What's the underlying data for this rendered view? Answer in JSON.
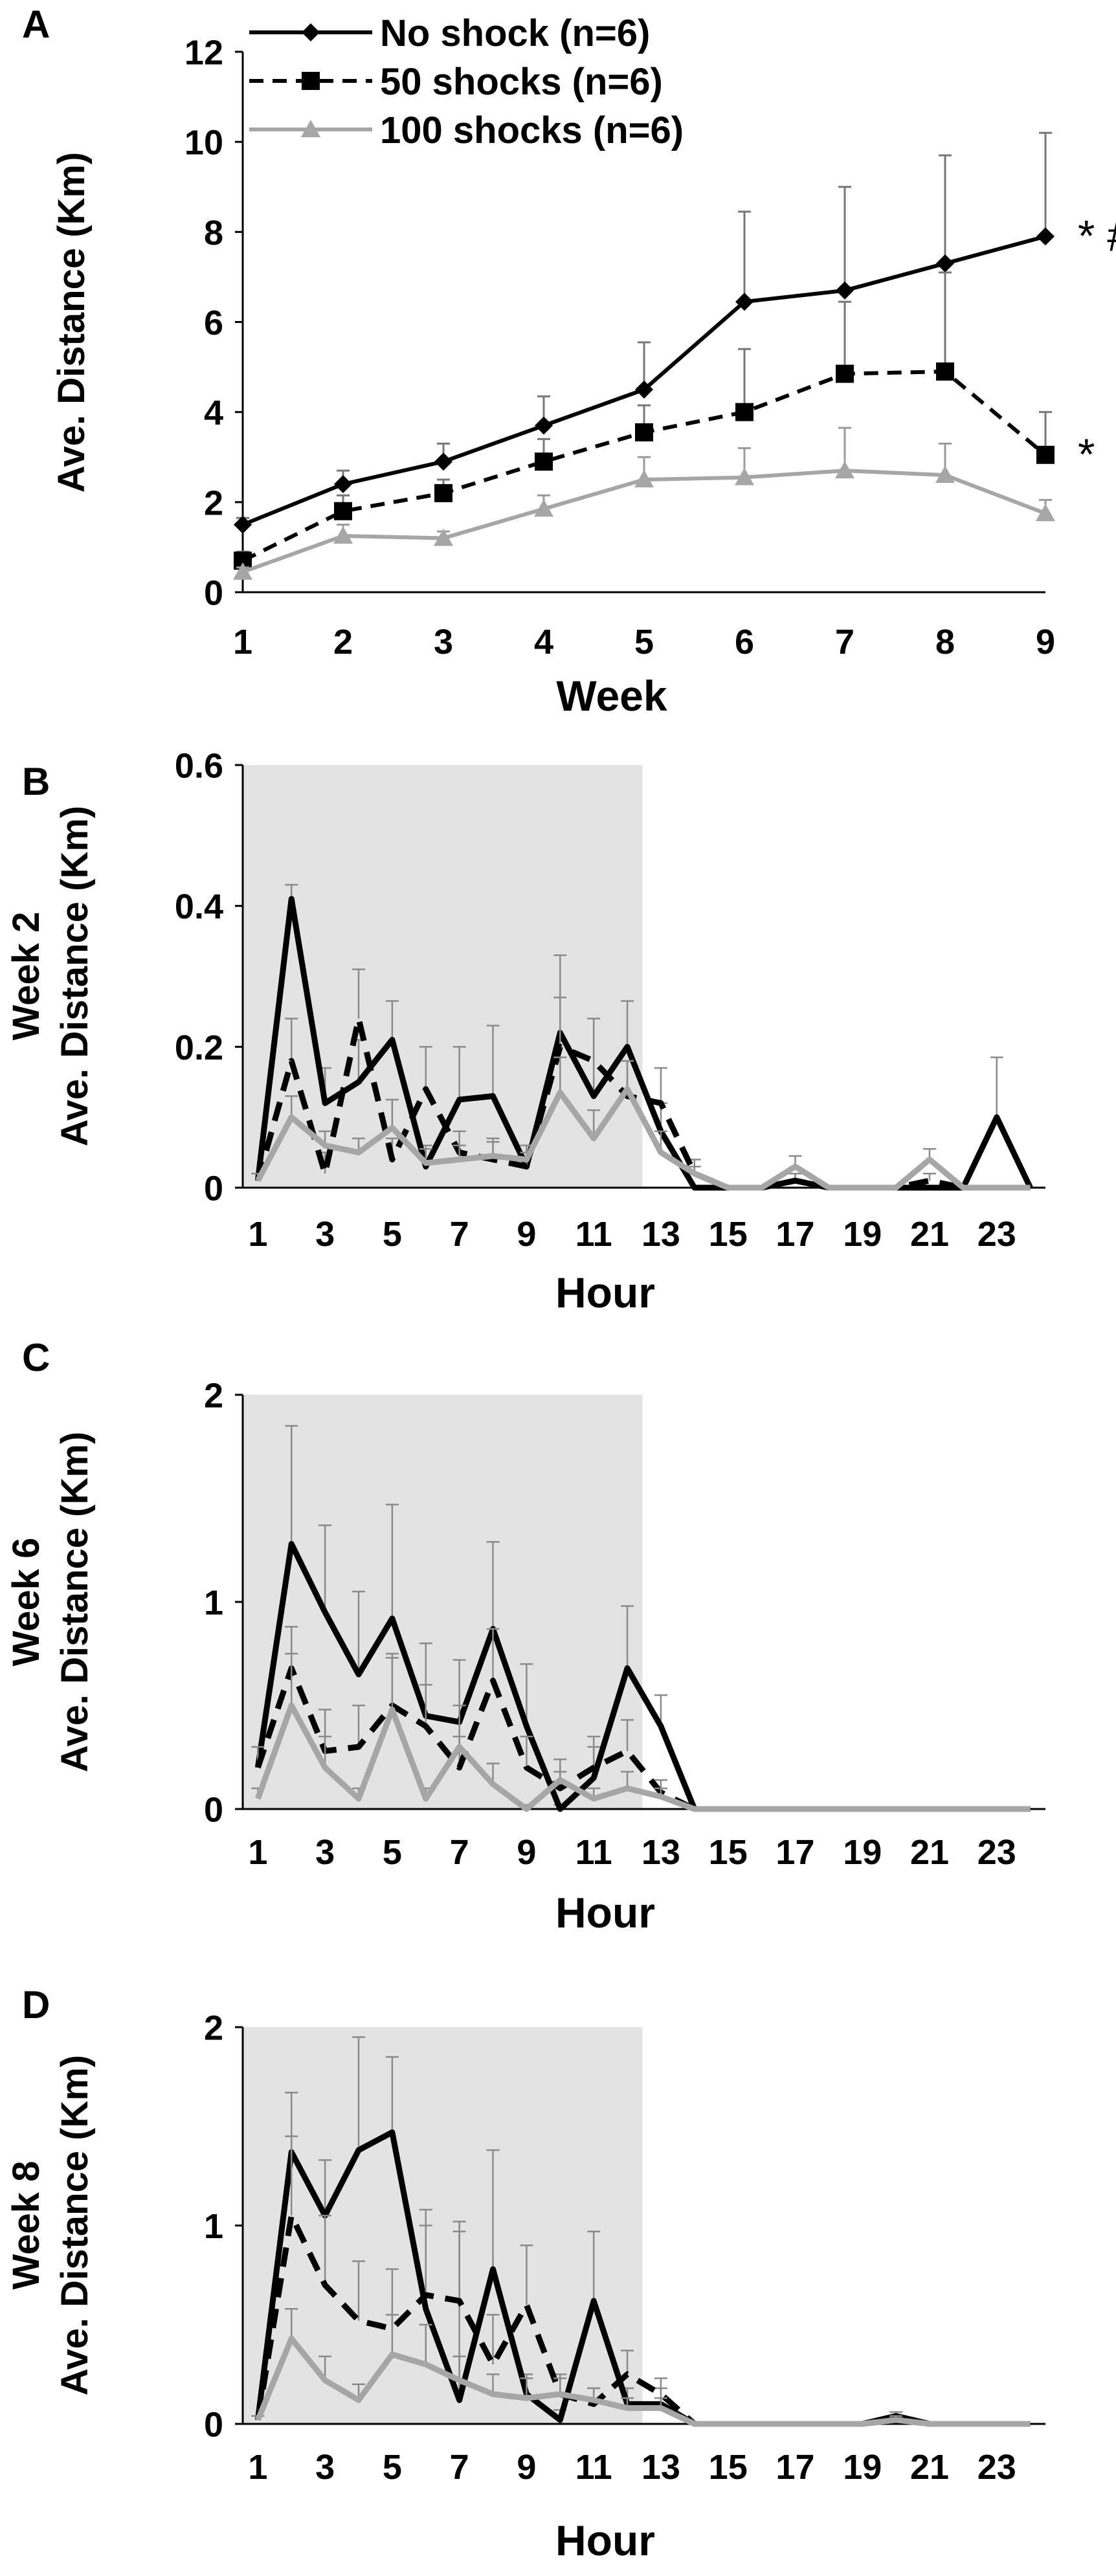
{
  "chart_data": [
    {
      "panel": "A",
      "type": "line",
      "xlabel": "Week",
      "ylabel": "Ave. Distance (Km)",
      "x": [
        1,
        2,
        3,
        4,
        5,
        6,
        7,
        8,
        9
      ],
      "xticks": [
        "1",
        "2",
        "3",
        "4",
        "5",
        "6",
        "7",
        "8",
        "9"
      ],
      "ylim": [
        0,
        12
      ],
      "yticks": [
        "0",
        "2",
        "4",
        "6",
        "8",
        "10",
        "12"
      ],
      "legend": "top-left",
      "series": [
        {
          "name": "No shock (n=6)",
          "values": [
            1.5,
            2.4,
            2.9,
            3.7,
            4.5,
            6.45,
            6.7,
            7.3,
            7.9
          ],
          "err": [
            0.15,
            0.3,
            0.4,
            0.65,
            1.05,
            2.0,
            2.3,
            2.4,
            2.3
          ],
          "color": "#000000",
          "dash": "solid",
          "marker": "diamond"
        },
        {
          "name": "50 shocks (n=6)",
          "values": [
            0.7,
            1.8,
            2.2,
            2.9,
            3.55,
            4.0,
            4.85,
            4.9,
            3.05
          ],
          "err": [
            0.2,
            0.35,
            0.3,
            0.5,
            0.6,
            1.4,
            1.6,
            2.2,
            0.95
          ],
          "color": "#000000",
          "dash": "dashed",
          "marker": "square"
        },
        {
          "name": "100 shocks (n=6)",
          "values": [
            0.45,
            1.25,
            1.2,
            1.85,
            2.5,
            2.55,
            2.7,
            2.6,
            1.75
          ],
          "err": [
            0.1,
            0.25,
            0.15,
            0.3,
            0.5,
            0.65,
            0.95,
            0.7,
            0.3
          ],
          "color": "#a6a6a6",
          "dash": "solid",
          "marker": "triangle"
        }
      ],
      "annotations": [
        {
          "text": "* #",
          "series": 0,
          "x": 9
        },
        {
          "text": "*",
          "series": 1,
          "x": 9
        }
      ]
    },
    {
      "panel": "B",
      "type": "line",
      "row_label": "Week 2",
      "xlabel": "Hour",
      "ylabel": "Ave. Distance (Km)",
      "x": [
        1,
        2,
        3,
        4,
        5,
        6,
        7,
        8,
        9,
        10,
        11,
        12,
        13,
        14,
        15,
        16,
        17,
        18,
        19,
        20,
        21,
        22,
        23,
        24
      ],
      "xticks": [
        "1",
        "3",
        "5",
        "7",
        "9",
        "11",
        "13",
        "15",
        "17",
        "19",
        "21",
        "23"
      ],
      "ylim": [
        0,
        0.6
      ],
      "yticks": [
        "0",
        "0.2",
        "0.4",
        "0.6"
      ],
      "shaded_hours": [
        1,
        12
      ],
      "series": [
        {
          "name": "No shock (n=6)",
          "values": [
            0.01,
            0.41,
            0.12,
            0.15,
            0.21,
            0.03,
            0.125,
            0.13,
            0.03,
            0.22,
            0.13,
            0.2,
            0.08,
            0.0,
            0.0,
            0.0,
            0.01,
            0.0,
            0.0,
            0.0,
            0.0,
            0.0,
            0.1,
            0.0
          ],
          "err": [
            0.01,
            0.02,
            0.05,
            0.06,
            0.055,
            0.03,
            0.075,
            0.1,
            0.03,
            0.11,
            0.11,
            0.065,
            0.04,
            0.0,
            0.0,
            0.0,
            0.01,
            0.0,
            0.0,
            0.0,
            0.0,
            0.0,
            0.085,
            0.0
          ],
          "color": "#000000",
          "dash": "solid"
        },
        {
          "name": "50 shocks (n=6)",
          "values": [
            0.01,
            0.18,
            0.02,
            0.24,
            0.04,
            0.14,
            0.05,
            0.04,
            0.03,
            0.2,
            0.18,
            0.13,
            0.12,
            0.02,
            0.0,
            0.0,
            0.01,
            0.0,
            0.0,
            0.0,
            0.01,
            0.0,
            0.0,
            0.0
          ],
          "err": [
            0.01,
            0.06,
            0.03,
            0.07,
            0.03,
            0.06,
            0.03,
            0.03,
            0.02,
            0.07,
            0.06,
            0.05,
            0.05,
            0.02,
            0.0,
            0.0,
            0.01,
            0.0,
            0.0,
            0.0,
            0.01,
            0.0,
            0.0,
            0.0
          ],
          "color": "#000000",
          "dash": "dashed"
        },
        {
          "name": "100 shocks (n=6)",
          "values": [
            0.01,
            0.1,
            0.06,
            0.05,
            0.085,
            0.035,
            0.04,
            0.045,
            0.04,
            0.135,
            0.07,
            0.14,
            0.05,
            0.02,
            0.0,
            0.0,
            0.03,
            0.0,
            0.0,
            0.0,
            0.04,
            0.0,
            0.0,
            0.0
          ],
          "err": [
            0.01,
            0.03,
            0.02,
            0.02,
            0.04,
            0.02,
            0.02,
            0.02,
            0.02,
            0.05,
            0.04,
            0.04,
            0.03,
            0.01,
            0.0,
            0.0,
            0.015,
            0.0,
            0.0,
            0.0,
            0.015,
            0.0,
            0.0,
            0.0
          ],
          "color": "#a6a6a6",
          "dash": "solid"
        }
      ]
    },
    {
      "panel": "C",
      "type": "line",
      "row_label": "Week 6",
      "xlabel": "Hour",
      "ylabel": "Ave. Distance (Km)",
      "x": [
        1,
        2,
        3,
        4,
        5,
        6,
        7,
        8,
        9,
        10,
        11,
        12,
        13,
        14,
        15,
        16,
        17,
        18,
        19,
        20,
        21,
        22,
        23,
        24
      ],
      "xticks": [
        "1",
        "3",
        "5",
        "7",
        "9",
        "11",
        "13",
        "15",
        "17",
        "19",
        "21",
        "23"
      ],
      "ylim": [
        0,
        2
      ],
      "yticks": [
        "0",
        "1",
        "2"
      ],
      "shaded_hours": [
        1,
        12
      ],
      "series": [
        {
          "name": "No shock (n=6)",
          "values": [
            0.2,
            1.28,
            0.95,
            0.65,
            0.92,
            0.45,
            0.42,
            0.87,
            0.4,
            0.0,
            0.15,
            0.68,
            0.4,
            0.0,
            0.0,
            0.0,
            0.0,
            0.0,
            0.0,
            0.0,
            0.0,
            0.0,
            0.0,
            0.0
          ],
          "err": [
            0.1,
            0.57,
            0.42,
            0.4,
            0.55,
            0.35,
            0.3,
            0.42,
            0.3,
            0.02,
            0.15,
            0.3,
            0.15,
            0.0,
            0.0,
            0.0,
            0.0,
            0.0,
            0.0,
            0.0,
            0.0,
            0.0,
            0.0,
            0.0
          ],
          "color": "#000000",
          "dash": "solid"
        },
        {
          "name": "50 shocks (n=6)",
          "values": [
            0.2,
            0.68,
            0.28,
            0.3,
            0.5,
            0.4,
            0.2,
            0.62,
            0.2,
            0.1,
            0.2,
            0.28,
            0.08,
            0.0,
            0.0,
            0.0,
            0.0,
            0.0,
            0.0,
            0.0,
            0.0,
            0.0,
            0.0,
            0.0
          ],
          "err": [
            0.1,
            0.2,
            0.2,
            0.2,
            0.25,
            0.2,
            0.15,
            0.25,
            0.15,
            0.08,
            0.15,
            0.15,
            0.06,
            0.0,
            0.0,
            0.0,
            0.0,
            0.0,
            0.0,
            0.0,
            0.0,
            0.0,
            0.0,
            0.0
          ],
          "color": "#000000",
          "dash": "dashed"
        },
        {
          "name": "100 shocks (n=6)",
          "values": [
            0.05,
            0.5,
            0.2,
            0.05,
            0.48,
            0.05,
            0.3,
            0.12,
            0.0,
            0.14,
            0.05,
            0.1,
            0.06,
            0.0,
            0.0,
            0.0,
            0.0,
            0.0,
            0.0,
            0.0,
            0.0,
            0.0,
            0.0,
            0.0
          ],
          "err": [
            0.05,
            0.25,
            0.15,
            0.05,
            0.25,
            0.05,
            0.2,
            0.1,
            0.02,
            0.1,
            0.05,
            0.08,
            0.04,
            0.0,
            0.0,
            0.0,
            0.0,
            0.0,
            0.0,
            0.0,
            0.0,
            0.0,
            0.0,
            0.0
          ],
          "color": "#a6a6a6",
          "dash": "solid"
        }
      ]
    },
    {
      "panel": "D",
      "type": "line",
      "row_label": "Week 8",
      "xlabel": "Hour",
      "ylabel": "Ave. Distance (Km)",
      "x": [
        1,
        2,
        3,
        4,
        5,
        6,
        7,
        8,
        9,
        10,
        11,
        12,
        13,
        14,
        15,
        16,
        17,
        18,
        19,
        20,
        21,
        22,
        23,
        24
      ],
      "xticks": [
        "1",
        "3",
        "5",
        "7",
        "9",
        "11",
        "13",
        "15",
        "17",
        "19",
        "21",
        "23"
      ],
      "ylim": [
        0,
        2
      ],
      "yticks": [
        "0",
        "1",
        "2"
      ],
      "shaded_hours": [
        1,
        12
      ],
      "series": [
        {
          "name": "No shock (n=6)",
          "values": [
            0.02,
            1.37,
            1.05,
            1.38,
            1.47,
            0.58,
            0.12,
            0.78,
            0.15,
            0.02,
            0.62,
            0.1,
            0.1,
            0.0,
            0.0,
            0.0,
            0.0,
            0.0,
            0.0,
            0.04,
            0.0,
            0.0,
            0.0,
            0.0
          ],
          "err": [
            0.02,
            0.3,
            0.28,
            0.57,
            0.38,
            0.5,
            0.9,
            0.6,
            0.1,
            0.05,
            0.35,
            0.08,
            0.08,
            0.0,
            0.0,
            0.0,
            0.0,
            0.0,
            0.0,
            0.02,
            0.0,
            0.0,
            0.0,
            0.0
          ],
          "color": "#000000",
          "dash": "solid"
        },
        {
          "name": "50 shocks (n=6)",
          "values": [
            0.02,
            1.05,
            0.7,
            0.52,
            0.48,
            0.65,
            0.62,
            0.3,
            0.6,
            0.15,
            0.1,
            0.25,
            0.15,
            0.0,
            0.0,
            0.0,
            0.0,
            0.0,
            0.0,
            0.02,
            0.0,
            0.0,
            0.0,
            0.0
          ],
          "err": [
            0.02,
            0.4,
            0.35,
            0.3,
            0.3,
            0.35,
            0.35,
            0.25,
            0.3,
            0.1,
            0.08,
            0.12,
            0.08,
            0.0,
            0.0,
            0.0,
            0.0,
            0.0,
            0.0,
            0.02,
            0.0,
            0.0,
            0.0,
            0.0
          ],
          "color": "#000000",
          "dash": "dashed"
        },
        {
          "name": "100 shocks (n=6)",
          "values": [
            0.02,
            0.43,
            0.22,
            0.12,
            0.35,
            0.3,
            0.22,
            0.15,
            0.13,
            0.15,
            0.12,
            0.08,
            0.08,
            0.0,
            0.0,
            0.0,
            0.0,
            0.0,
            0.0,
            0.02,
            0.0,
            0.0,
            0.0,
            0.0
          ],
          "err": [
            0.02,
            0.15,
            0.12,
            0.08,
            0.2,
            0.2,
            0.12,
            0.1,
            0.1,
            0.08,
            0.06,
            0.05,
            0.05,
            0.0,
            0.0,
            0.0,
            0.0,
            0.0,
            0.0,
            0.01,
            0.0,
            0.0,
            0.0,
            0.0
          ],
          "color": "#a6a6a6",
          "dash": "solid"
        }
      ]
    }
  ]
}
